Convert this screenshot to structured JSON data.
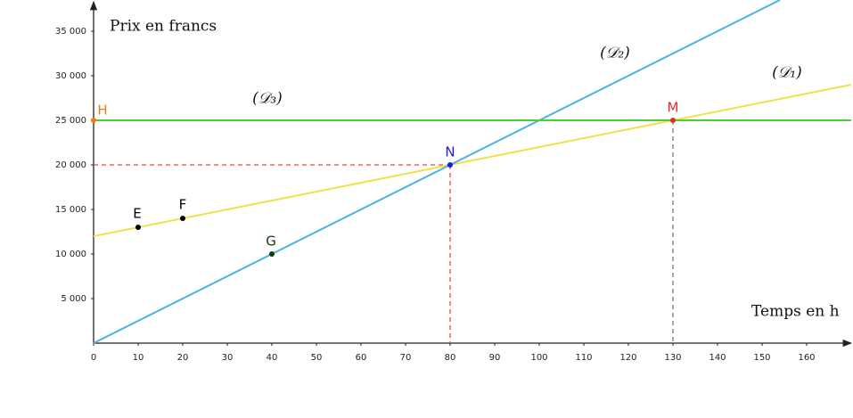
{
  "chart_data": {
    "type": "line",
    "y_title": "Prix en francs",
    "x_title": "Temps en h",
    "xlim": [
      0,
      170
    ],
    "ylim": [
      0,
      38500
    ],
    "xticks": [
      0,
      10,
      20,
      30,
      40,
      50,
      60,
      70,
      80,
      90,
      100,
      110,
      120,
      130,
      140,
      150,
      160
    ],
    "yticks": [
      {
        "value": 5000,
        "label": "5 000"
      },
      {
        "value": 10000,
        "label": "10 000"
      },
      {
        "value": 15000,
        "label": "15 000"
      },
      {
        "value": 20000,
        "label": "20 000"
      },
      {
        "value": 25000,
        "label": "25 000"
      },
      {
        "value": 30000,
        "label": "30 000"
      },
      {
        "value": 35000,
        "label": "35 000"
      }
    ],
    "series": [
      {
        "name": "(𝒟₁)",
        "color": "#f2df4e",
        "x": [
          0,
          170
        ],
        "values": [
          12000,
          29000
        ]
      },
      {
        "name": "(𝒟₂)",
        "color": "#4db2e8",
        "x": [
          0,
          154
        ],
        "values": [
          0,
          38500
        ]
      },
      {
        "name": "(𝒟₃)",
        "color": "#4ccd3a",
        "x": [
          0,
          170
        ],
        "values": [
          25000,
          25000
        ]
      }
    ],
    "points": [
      {
        "label": "E",
        "x": 10,
        "y": 13000,
        "color": "#000000"
      },
      {
        "label": "F",
        "x": 20,
        "y": 14000,
        "color": "#000000"
      },
      {
        "label": "G",
        "x": 40,
        "y": 10000,
        "color": "#0d3d0d"
      },
      {
        "label": "H",
        "x": 0,
        "y": 25000,
        "color": "#f07a10"
      },
      {
        "label": "N",
        "x": 80,
        "y": 20000,
        "color": "#1a1ae0"
      },
      {
        "label": "M",
        "x": 130,
        "y": 25000,
        "color": "#e52a2a"
      }
    ],
    "guides": [
      {
        "point": 4,
        "color": "#f04444",
        "to_y_axis": true
      },
      {
        "point": 5,
        "color": "#777777",
        "to_y_axis": false
      }
    ],
    "highlight_color": "#e03030"
  }
}
